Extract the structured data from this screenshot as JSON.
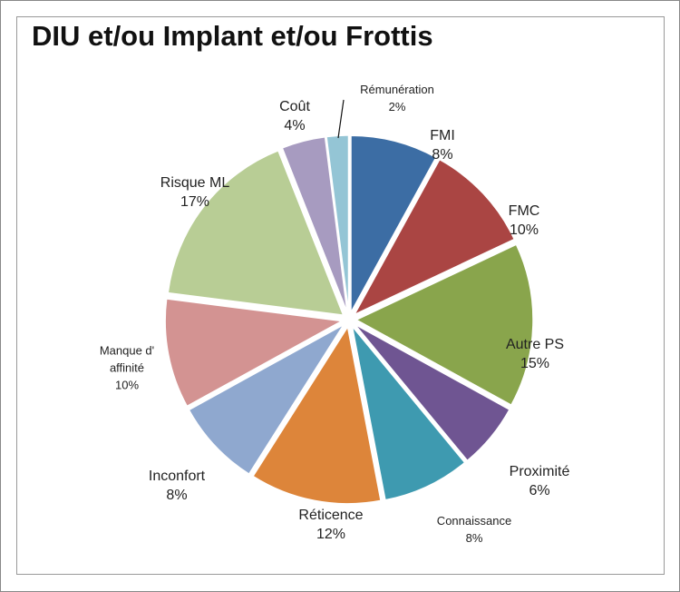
{
  "chart_data": {
    "type": "pie",
    "title": "DIU et/ou Implant et/ou Frottis",
    "categories": [
      "FMI",
      "FMC",
      "Autre PS",
      "Proximité",
      "Connaissance",
      "Réticence",
      "Inconfort",
      "Manque d' affinité",
      "Risque ML",
      "Coût",
      "Rémunération"
    ],
    "values": [
      8,
      10,
      15,
      6,
      8,
      12,
      8,
      10,
      17,
      4,
      2
    ],
    "value_labels": [
      "8%",
      "10%",
      "15%",
      "6%",
      "8%",
      "12%",
      "8%",
      "10%",
      "17%",
      "4%",
      "2%"
    ],
    "colors": [
      "#3c6da4",
      "#aa4543",
      "#89a54c",
      "#6f5592",
      "#3e9ab0",
      "#dd853a",
      "#8fa8cf",
      "#d39392",
      "#b8cd95",
      "#a79bc0",
      "#94c5d5"
    ]
  }
}
